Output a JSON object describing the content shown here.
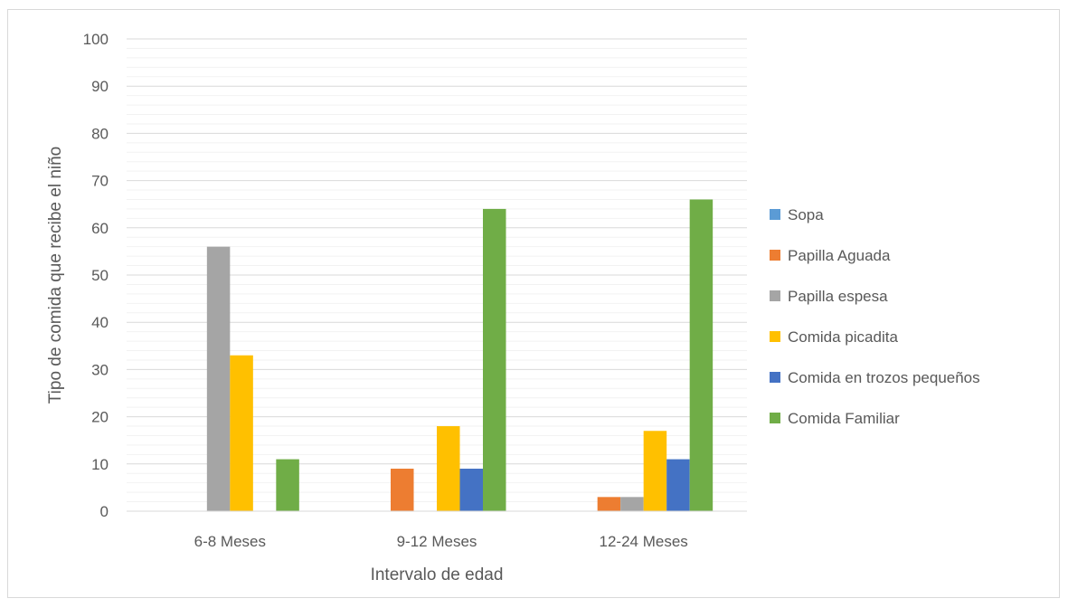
{
  "chart_data": {
    "type": "bar",
    "xlabel": "Intervalo de edad",
    "ylabel": "Tipo de comida que recibe el niño",
    "ylim": [
      0,
      100
    ],
    "y_ticks": [
      "0",
      "10",
      "20",
      "30",
      "40",
      "50",
      "60",
      "70",
      "80",
      "90",
      "100"
    ],
    "categories": [
      "6-8 Meses",
      "9-12 Meses",
      "12-24 Meses"
    ],
    "series": [
      {
        "name": "Sopa",
        "color": "#5b9bd5",
        "values": [
          0,
          0,
          0
        ]
      },
      {
        "name": "Papilla Aguada",
        "color": "#ed7d31",
        "values": [
          0,
          9,
          3
        ]
      },
      {
        "name": "Papilla espesa",
        "color": "#a5a5a5",
        "values": [
          56,
          0,
          3
        ]
      },
      {
        "name": "Comida picadita",
        "color": "#ffc000",
        "values": [
          33,
          18,
          17
        ]
      },
      {
        "name": "Comida en trozos pequeños",
        "color": "#4472c4",
        "values": [
          0,
          9,
          11
        ]
      },
      {
        "name": "Comida Familiar",
        "color": "#70ad47",
        "values": [
          11,
          64,
          66
        ]
      }
    ],
    "grid": true,
    "legend_position": "right"
  }
}
